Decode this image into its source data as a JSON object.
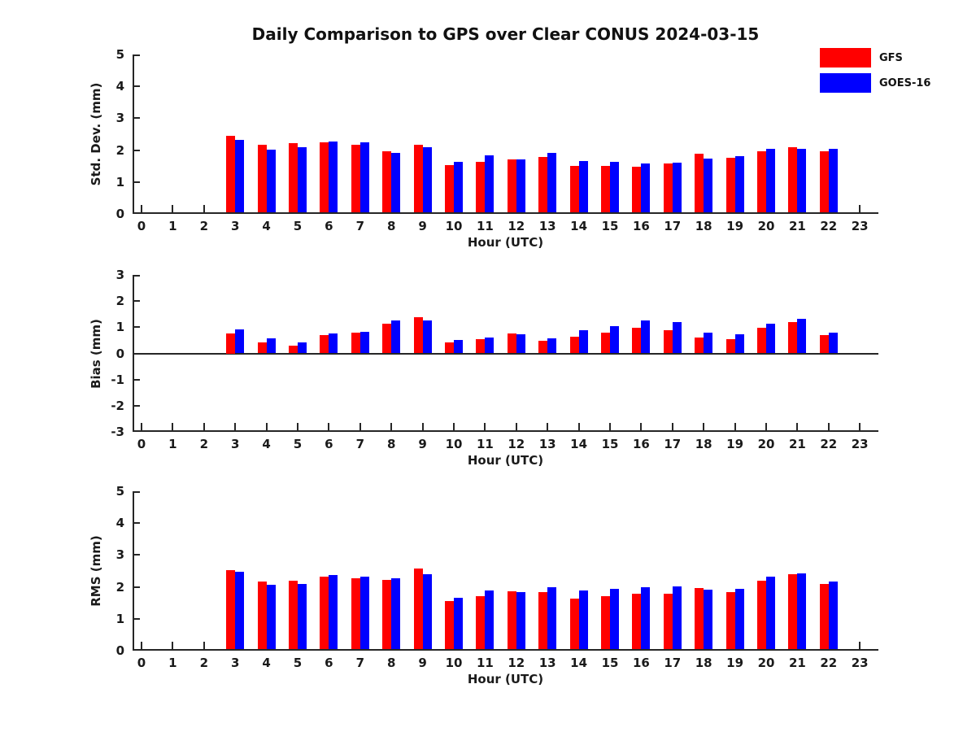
{
  "figure": {
    "title": "Daily Comparison to GPS over Clear CONUS 2024-03-15"
  },
  "legend": {
    "position": "top-right",
    "entries": [
      {
        "label": "GFS",
        "color": "#ff0000"
      },
      {
        "label": "GOES-16",
        "color": "#0000ff"
      }
    ]
  },
  "chart_data": [
    {
      "type": "bar",
      "panel": "std_dev",
      "ylabel": "Std. Dev. (mm)",
      "xlabel": "Hour (UTC)",
      "ylim": [
        0,
        5
      ],
      "yticks": [
        0,
        1,
        2,
        3,
        4,
        5
      ],
      "xticks": [
        0,
        1,
        2,
        3,
        4,
        5,
        6,
        7,
        8,
        9,
        10,
        11,
        12,
        13,
        14,
        15,
        16,
        17,
        18,
        19,
        20,
        21,
        22,
        23
      ],
      "hours": [
        3,
        4,
        5,
        6,
        7,
        8,
        9,
        10,
        11,
        12,
        13,
        14,
        15,
        16,
        17,
        18,
        19,
        20,
        21,
        22
      ],
      "zero_line": false,
      "grid": false,
      "series": [
        {
          "name": "GFS",
          "color": "#ff0000",
          "values": [
            2.45,
            2.18,
            2.22,
            2.25,
            2.17,
            1.97,
            2.18,
            1.52,
            1.64,
            1.72,
            1.79,
            1.51,
            1.5,
            1.48,
            1.57,
            1.9,
            1.77,
            1.96,
            2.08,
            1.96
          ]
        },
        {
          "name": "GOES-16",
          "color": "#0000ff",
          "values": [
            2.32,
            2.02,
            2.09,
            2.27,
            2.25,
            1.92,
            2.08,
            1.62,
            1.83,
            1.7,
            1.91,
            1.66,
            1.62,
            1.57,
            1.6,
            1.73,
            1.8,
            2.05,
            2.03,
            2.04
          ]
        }
      ]
    },
    {
      "type": "bar",
      "panel": "bias",
      "ylabel": "Bias (mm)",
      "xlabel": "Hour (UTC)",
      "ylim": [
        -3,
        3
      ],
      "yticks": [
        -3,
        -2,
        -1,
        0,
        1,
        2,
        3
      ],
      "xticks": [
        0,
        1,
        2,
        3,
        4,
        5,
        6,
        7,
        8,
        9,
        10,
        11,
        12,
        13,
        14,
        15,
        16,
        17,
        18,
        19,
        20,
        21,
        22,
        23
      ],
      "hours": [
        3,
        4,
        5,
        6,
        7,
        8,
        9,
        10,
        11,
        12,
        13,
        14,
        15,
        16,
        17,
        18,
        19,
        20,
        21,
        22
      ],
      "zero_line": true,
      "grid": false,
      "series": [
        {
          "name": "GFS",
          "color": "#ff0000",
          "values": [
            0.75,
            0.42,
            0.3,
            0.7,
            0.78,
            1.13,
            1.38,
            0.43,
            0.53,
            0.76,
            0.48,
            0.64,
            0.8,
            0.97,
            0.89,
            0.61,
            0.53,
            0.97,
            1.19,
            0.71
          ]
        },
        {
          "name": "GOES-16",
          "color": "#0000ff",
          "values": [
            0.92,
            0.57,
            0.42,
            0.77,
            0.81,
            1.25,
            1.25,
            0.51,
            0.62,
            0.73,
            0.57,
            0.89,
            1.03,
            1.26,
            1.19,
            0.78,
            0.74,
            1.12,
            1.32,
            0.79
          ]
        }
      ]
    },
    {
      "type": "bar",
      "panel": "rms",
      "ylabel": "RMS (mm)",
      "xlabel": "Hour (UTC)",
      "ylim": [
        0,
        5
      ],
      "yticks": [
        0,
        1,
        2,
        3,
        4,
        5
      ],
      "xticks": [
        0,
        1,
        2,
        3,
        4,
        5,
        6,
        7,
        8,
        9,
        10,
        11,
        12,
        13,
        14,
        15,
        16,
        17,
        18,
        19,
        20,
        21,
        22,
        23
      ],
      "hours": [
        3,
        4,
        5,
        6,
        7,
        8,
        9,
        10,
        11,
        12,
        13,
        14,
        15,
        16,
        17,
        18,
        19,
        20,
        21,
        22
      ],
      "zero_line": false,
      "grid": false,
      "series": [
        {
          "name": "GFS",
          "color": "#ff0000",
          "values": [
            2.52,
            2.17,
            2.19,
            2.32,
            2.27,
            2.23,
            2.57,
            1.55,
            1.7,
            1.86,
            1.84,
            1.64,
            1.7,
            1.79,
            1.78,
            1.96,
            1.84,
            2.2,
            2.4,
            2.08
          ]
        },
        {
          "name": "GOES-16",
          "color": "#0000ff",
          "values": [
            2.47,
            2.06,
            2.09,
            2.37,
            2.33,
            2.27,
            2.39,
            1.66,
            1.88,
            1.83,
            2.0,
            1.9,
            1.95,
            2.0,
            2.01,
            1.91,
            1.94,
            2.33,
            2.42,
            2.16
          ]
        }
      ]
    }
  ]
}
